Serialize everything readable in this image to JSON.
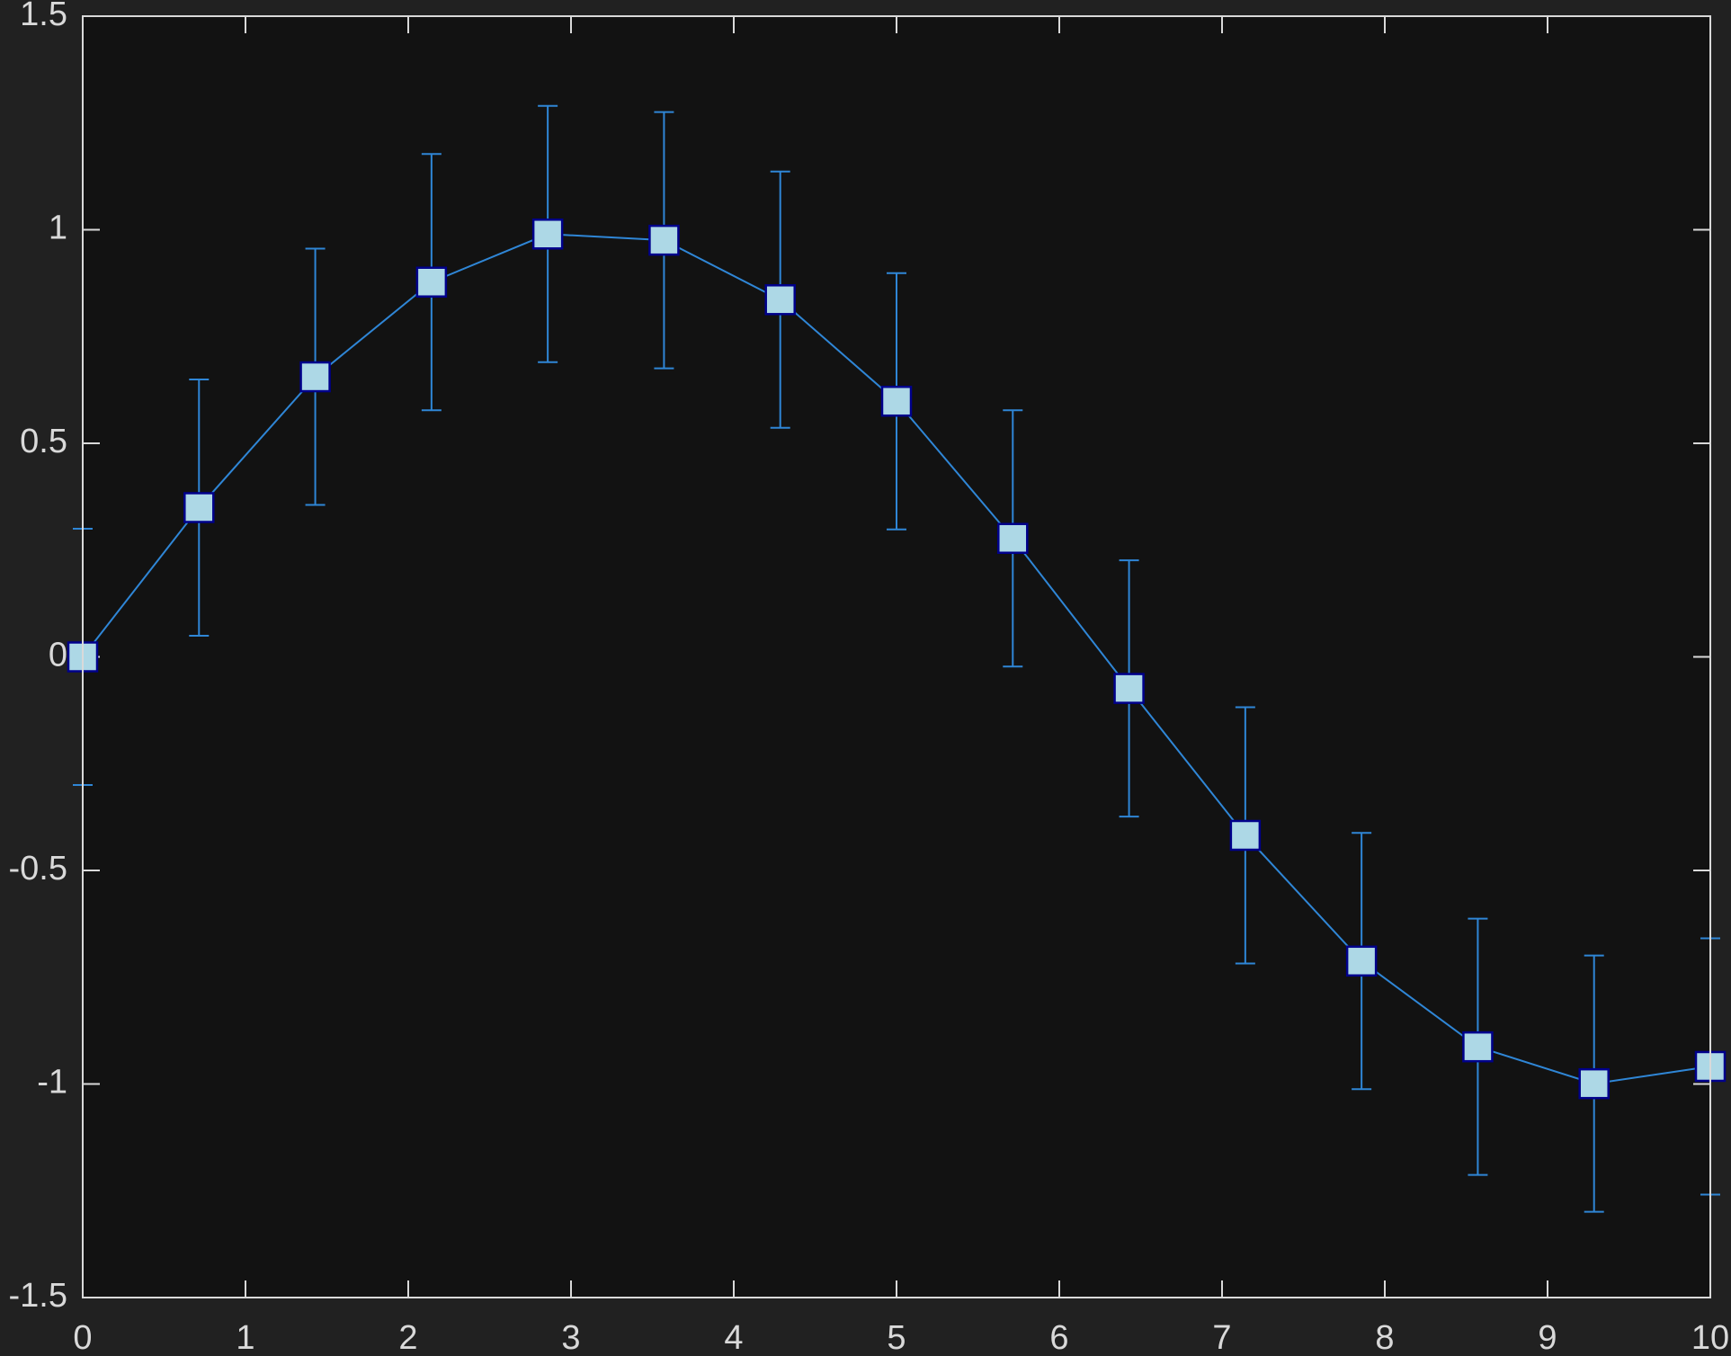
{
  "chart_data": {
    "type": "line",
    "title": "",
    "xlabel": "",
    "ylabel": "",
    "xlim": [
      0,
      10
    ],
    "ylim": [
      -1.5,
      1.5
    ],
    "xticks": [
      0,
      1,
      2,
      3,
      4,
      5,
      6,
      7,
      8,
      9,
      10
    ],
    "xtick_labels": [
      "0",
      "1",
      "2",
      "3",
      "4",
      "5",
      "6",
      "7",
      "8",
      "9",
      "10"
    ],
    "yticks": [
      -1.5,
      -1,
      -0.5,
      0,
      0.5,
      1,
      1.5
    ],
    "ytick_labels": [
      "-1.5",
      "-1",
      "-0.5",
      "0",
      "0.5",
      "1",
      "1.5"
    ],
    "grid": false,
    "legend": "none",
    "marker": "square",
    "error_bar": "symmetric",
    "series": [
      {
        "x": [
          0,
          0.7143,
          1.4286,
          2.1429,
          2.8571,
          3.5714,
          4.2857,
          5.0,
          5.7143,
          6.4286,
          7.1429,
          7.8571,
          8.5714,
          9.2857,
          10.0
        ],
        "y": [
          0.0,
          0.3495,
          0.6557,
          0.8774,
          0.9899,
          0.9755,
          0.8362,
          0.5985,
          0.2774,
          -0.0739,
          -0.4179,
          -0.7122,
          -0.913,
          -0.9993,
          -0.9589
        ],
        "err": [
          0.3,
          0.3,
          0.3,
          0.3,
          0.3,
          0.3,
          0.3,
          0.3,
          0.3,
          0.3,
          0.3,
          0.3,
          0.3,
          0.3,
          0.3
        ]
      }
    ],
    "colors": {
      "figure_bg": "#212121",
      "axes_bg": "#121212",
      "axis": "#d9d9d9",
      "line": "#2f86d6",
      "marker_face": "#add8e6",
      "marker_edge": "#00008b"
    }
  }
}
